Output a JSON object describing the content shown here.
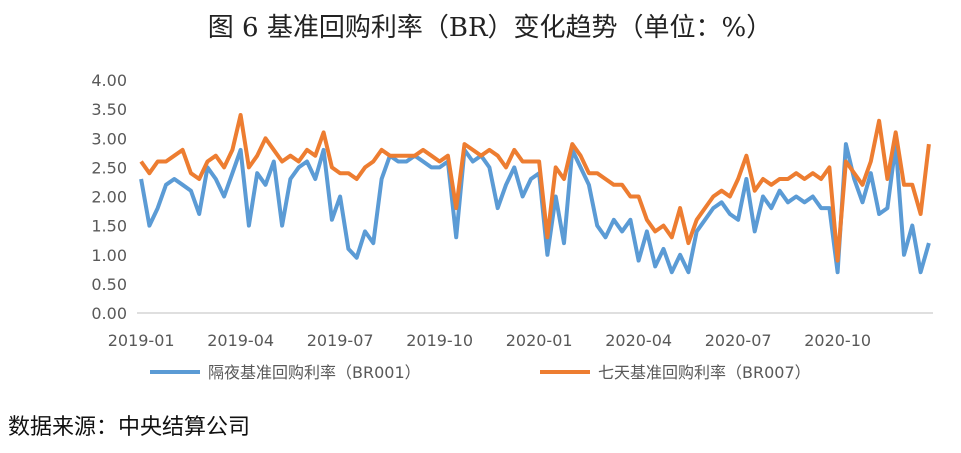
{
  "chart_data": {
    "type": "line",
    "title": "图 6  基准回购利率（BR）变化趋势（单位：%）",
    "source": "数据来源：中央结算公司",
    "categories": [
      "2019-01",
      null,
      null,
      null,
      null,
      null,
      null,
      null,
      null,
      null,
      null,
      null,
      "2019-04",
      null,
      null,
      null,
      null,
      null,
      null,
      null,
      null,
      null,
      null,
      null,
      "2019-07",
      null,
      null,
      null,
      null,
      null,
      null,
      null,
      null,
      null,
      null,
      null,
      "2019-10",
      null,
      null,
      null,
      null,
      null,
      null,
      null,
      null,
      null,
      null,
      null,
      "2020-01",
      null,
      null,
      null,
      null,
      null,
      null,
      null,
      null,
      null,
      null,
      null,
      "2020-04",
      null,
      null,
      null,
      null,
      null,
      null,
      null,
      null,
      null,
      null,
      null,
      "2020-07",
      null,
      null,
      null,
      null,
      null,
      null,
      null,
      null,
      null,
      null,
      null,
      "2020-10",
      null,
      null,
      null,
      null,
      null,
      null,
      null,
      null,
      null,
      null,
      null
    ],
    "series": [
      {
        "name": "隔夜基准回购利率（BR001）",
        "color": "#5b9bd5",
        "values": [
          2.3,
          1.5,
          1.8,
          2.2,
          2.3,
          2.2,
          2.1,
          1.7,
          2.5,
          2.3,
          2.0,
          2.4,
          2.8,
          1.5,
          2.4,
          2.2,
          2.6,
          1.5,
          2.3,
          2.5,
          2.6,
          2.3,
          2.8,
          1.6,
          2.0,
          1.1,
          0.95,
          1.4,
          1.2,
          2.3,
          2.7,
          2.6,
          2.6,
          2.7,
          2.6,
          2.5,
          2.5,
          2.6,
          1.3,
          2.8,
          2.6,
          2.7,
          2.5,
          1.8,
          2.2,
          2.5,
          2.0,
          2.3,
          2.4,
          1.0,
          2.0,
          1.2,
          2.8,
          2.5,
          2.2,
          1.5,
          1.3,
          1.6,
          1.4,
          1.6,
          0.9,
          1.4,
          0.8,
          1.1,
          0.7,
          1.0,
          0.7,
          1.4,
          1.6,
          1.8,
          1.9,
          1.7,
          1.6,
          2.3,
          1.4,
          2.0,
          1.8,
          2.1,
          1.9,
          2.0,
          1.9,
          2.0,
          1.8,
          1.8,
          0.7,
          2.9,
          2.3,
          1.9,
          2.4,
          1.7,
          1.8,
          2.9,
          1.0,
          1.5,
          0.7,
          1.2
        ]
      },
      {
        "name": "七天基准回购利率（BR007）",
        "color": "#ed7d31",
        "values": [
          2.6,
          2.4,
          2.6,
          2.6,
          2.7,
          2.8,
          2.4,
          2.3,
          2.6,
          2.7,
          2.5,
          2.8,
          3.4,
          2.5,
          2.7,
          3.0,
          2.8,
          2.6,
          2.7,
          2.6,
          2.8,
          2.7,
          3.1,
          2.5,
          2.4,
          2.4,
          2.3,
          2.5,
          2.6,
          2.8,
          2.7,
          2.7,
          2.7,
          2.7,
          2.8,
          2.7,
          2.6,
          2.7,
          1.8,
          2.9,
          2.8,
          2.7,
          2.8,
          2.7,
          2.5,
          2.8,
          2.6,
          2.6,
          2.6,
          1.3,
          2.5,
          2.3,
          2.9,
          2.7,
          2.4,
          2.4,
          2.3,
          2.2,
          2.2,
          2.0,
          2.0,
          1.6,
          1.4,
          1.5,
          1.3,
          1.8,
          1.2,
          1.6,
          1.8,
          2.0,
          2.1,
          2.0,
          2.3,
          2.7,
          2.1,
          2.3,
          2.2,
          2.3,
          2.3,
          2.4,
          2.3,
          2.4,
          2.3,
          2.5,
          0.9,
          2.6,
          2.4,
          2.2,
          2.6,
          3.3,
          2.3,
          3.1,
          2.2,
          2.2,
          1.7,
          2.9
        ]
      }
    ],
    "ylim": [
      0,
      4
    ],
    "yticks": [
      {
        "value": 0,
        "label": "0.00"
      },
      {
        "value": 0.5,
        "label": "0.50"
      },
      {
        "value": 1,
        "label": "1.00"
      },
      {
        "value": 1.5,
        "label": "1.50"
      },
      {
        "value": 2,
        "label": "2.00"
      },
      {
        "value": 2.5,
        "label": "2.50"
      },
      {
        "value": 3,
        "label": "3.00"
      },
      {
        "value": 3.5,
        "label": "3.50"
      },
      {
        "value": 4,
        "label": "4.00"
      }
    ],
    "grid": false,
    "legend": "bottom"
  }
}
